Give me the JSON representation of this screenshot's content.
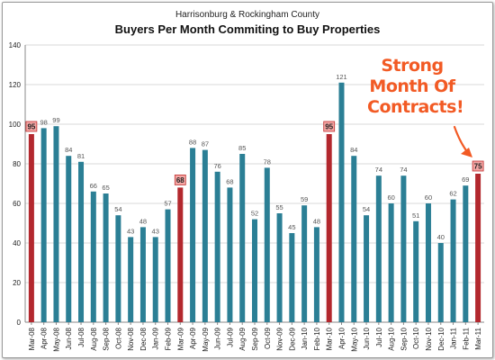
{
  "subtitle": "Harrisonburg & Rockingham County",
  "title": "Buyers Per Month Commiting to Buy Properties",
  "callout": {
    "line1": "Strong",
    "line2": "Month Of",
    "line3": "Contracts!"
  },
  "colors": {
    "bar": "#2b7f95",
    "highlight": "#b3282e",
    "callout": "#f25a24"
  },
  "chart_data": {
    "type": "bar",
    "title": "Buyers Per Month Commiting to Buy Properties",
    "subtitle": "Harrisonburg & Rockingham County",
    "xlabel": "",
    "ylabel": "",
    "ylim": [
      0,
      140
    ],
    "yticks": [
      0,
      20,
      40,
      60,
      80,
      100,
      120,
      140
    ],
    "grid": true,
    "categories": [
      "Mar-08",
      "Apr-08",
      "May-08",
      "Jun-08",
      "Jul-08",
      "Aug-08",
      "Sep-08",
      "Oct-08",
      "Nov-08",
      "Dec-08",
      "Jan-09",
      "Feb-09",
      "Mar-09",
      "Apr-09",
      "May-09",
      "Jun-09",
      "Jul-09",
      "Aug-09",
      "Sep-09",
      "Oct-09",
      "Nov-09",
      "Dec-09",
      "Jan-10",
      "Feb-10",
      "Mar-10",
      "Apr-10",
      "May-10",
      "Jun-10",
      "Jul-10",
      "Aug-10",
      "Sep-10",
      "Oct-10",
      "Nov-10",
      "Dec-10",
      "Jan-11",
      "Feb-11",
      "Mar-11"
    ],
    "values": [
      95,
      98,
      99,
      84,
      81,
      66,
      65,
      54,
      43,
      48,
      43,
      57,
      68,
      88,
      87,
      76,
      68,
      85,
      52,
      78,
      55,
      45,
      59,
      48,
      95,
      121,
      84,
      54,
      74,
      60,
      74,
      51,
      60,
      40,
      62,
      69,
      75
    ],
    "highlighted_categories": [
      "Mar-08",
      "Mar-09",
      "Mar-10",
      "Mar-11"
    ]
  }
}
